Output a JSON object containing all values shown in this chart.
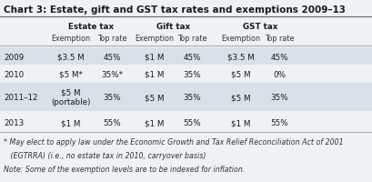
{
  "title": "Chart 3: Estate, gift and GST tax rates and exemptions 2009–13",
  "background_color": "#eef2f5",
  "row_bg_shaded": "#d9e0e8",
  "row_bg_white": "#eef2f5",
  "col_groups": [
    "Estate tax",
    "Gift tax",
    "GST tax"
  ],
  "col_headers": [
    "Exemption",
    "Top rate",
    "Exemption",
    "Top rate",
    "Exemption",
    "Top rate"
  ],
  "rows": [
    {
      "year": "2009",
      "vals": [
        "$3.5 M",
        "45%",
        "$1 M",
        "45%",
        "$3.5 M",
        "45%"
      ],
      "shaded": true,
      "tall": false
    },
    {
      "year": "2010",
      "vals": [
        "$5 M*",
        "35%*",
        "$1 M",
        "35%",
        "$5 M",
        "0%"
      ],
      "shaded": false,
      "tall": false
    },
    {
      "year": "2011–12",
      "vals": [
        "$5 M\n(portable)",
        "35%",
        "$5 M",
        "35%",
        "$5 M",
        "35%"
      ],
      "shaded": true,
      "tall": true
    },
    {
      "year": "2013",
      "vals": [
        "$1 M",
        "55%",
        "$1 M",
        "55%",
        "$1 M",
        "55%"
      ],
      "shaded": false,
      "tall": false
    }
  ],
  "footnote1": "* May elect to apply law under the Economic Growth and Tax Relief Reconciliation Act of 2001",
  "footnote2": "   (EGTRRA) (i.e., no estate tax in 2010, carryover basis)",
  "footnote3": "Note: Some of the exemption levels are to be indexed for inflation.",
  "title_fontsize": 7.5,
  "body_fontsize": 6.3,
  "footnote_fontsize": 5.7
}
